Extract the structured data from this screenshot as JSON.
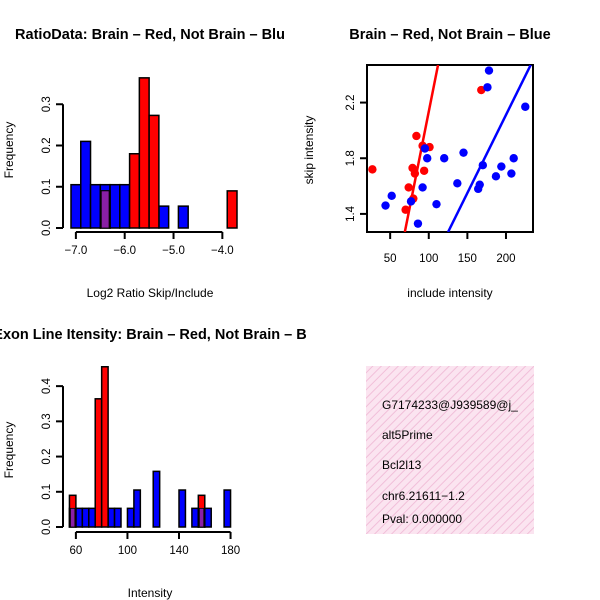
{
  "colors": {
    "red": "#ff0000",
    "blue": "#0000ff",
    "purple_overlap": "#8a1fa6",
    "info_box_bg": "#fbe4f0",
    "info_box_hatch": "#f1bfd9",
    "pval_text": "#cc0000"
  },
  "chart_data": [
    {
      "id": "ratio-hist",
      "type": "bar",
      "title": "RatioData: Brain – Red, Not Brain – Blu",
      "xlabel": "Log2 Ratio Skip/Include",
      "ylabel": "Frequency",
      "xlim": [
        -7.1,
        -3.7
      ],
      "ylim": [
        0,
        0.4
      ],
      "xticks": [
        -7.0,
        -6.0,
        -5.0,
        -4.0
      ],
      "xtick_labels": [
        "−7.0",
        "−6.0",
        "−5.0",
        "−4.0"
      ],
      "yticks": [
        0.0,
        0.1,
        0.2,
        0.3
      ],
      "ytick_labels": [
        "0.0",
        "0.1",
        "0.2",
        "0.3"
      ],
      "bin_width": 0.2,
      "series": [
        {
          "name": "Not Brain",
          "color": "blue",
          "bins": [
            {
              "x0": -7.1,
              "value": 0.105
            },
            {
              "x0": -6.9,
              "value": 0.21
            },
            {
              "x0": -6.7,
              "value": 0.105
            },
            {
              "x0": -6.5,
              "value": 0.105
            },
            {
              "x0": -6.3,
              "value": 0.105
            },
            {
              "x0": -6.1,
              "value": 0.105
            },
            {
              "x0": -5.3,
              "value": 0.053
            },
            {
              "x0": -4.9,
              "value": 0.053
            }
          ]
        },
        {
          "name": "Brain",
          "color": "red",
          "bins": [
            {
              "x0": -6.5,
              "value": 0.09
            },
            {
              "x0": -5.9,
              "value": 0.18
            },
            {
              "x0": -5.7,
              "value": 0.364
            },
            {
              "x0": -5.5,
              "value": 0.273
            },
            {
              "x0": -3.9,
              "value": 0.09
            }
          ]
        }
      ]
    },
    {
      "id": "scatter",
      "type": "scatter",
      "title": "Brain – Red, Not Brain – Blue",
      "xlabel": "include intensity",
      "ylabel": "skip intensity",
      "xlim": [
        20,
        235
      ],
      "ylim": [
        1.27,
        2.47
      ],
      "xticks": [
        50,
        100,
        150,
        200
      ],
      "xtick_labels": [
        "50",
        "100",
        "150",
        "200"
      ],
      "yticks": [
        1.4,
        1.8,
        2.2
      ],
      "ytick_labels": [
        "1.4",
        "1.8",
        "2.2"
      ],
      "series": [
        {
          "name": "Brain",
          "color": "red",
          "points": [
            [
              27,
              1.72
            ],
            [
              70,
              1.43
            ],
            [
              74,
              1.59
            ],
            [
              79,
              1.73
            ],
            [
              80,
              1.51
            ],
            [
              82,
              1.69
            ],
            [
              84,
              1.96
            ],
            [
              92,
              1.89
            ],
            [
              94,
              1.71
            ],
            [
              101,
              1.88
            ],
            [
              168,
              2.29
            ]
          ],
          "fit_line": [
            [
              69,
              1.27
            ],
            [
              112,
              2.47
            ]
          ]
        },
        {
          "name": "Not Brain",
          "color": "blue",
          "points": [
            [
              44,
              1.46
            ],
            [
              52,
              1.53
            ],
            [
              77,
              1.49
            ],
            [
              86,
              1.33
            ],
            [
              92,
              1.59
            ],
            [
              95,
              1.87
            ],
            [
              98,
              1.8
            ],
            [
              110,
              1.47
            ],
            [
              120,
              1.8
            ],
            [
              137,
              1.62
            ],
            [
              145,
              1.84
            ],
            [
              164,
              1.58
            ],
            [
              166,
              1.61
            ],
            [
              170,
              1.75
            ],
            [
              176,
              2.31
            ],
            [
              178,
              2.43
            ],
            [
              187,
              1.67
            ],
            [
              194,
              1.74
            ],
            [
              207,
              1.69
            ],
            [
              210,
              1.8
            ],
            [
              225,
              2.17
            ]
          ],
          "fit_line": [
            [
              125,
              1.27
            ],
            [
              232,
              2.47
            ]
          ]
        }
      ]
    },
    {
      "id": "intensity-hist",
      "type": "bar",
      "title": "Exon Line Itensity: Brain – Red, Not Brain – B",
      "xlabel": "Intensity",
      "ylabel": "Frequency",
      "xlim": [
        50,
        185
      ],
      "ylim": [
        0,
        0.46
      ],
      "xticks": [
        60,
        100,
        140,
        180
      ],
      "xtick_labels": [
        "60",
        "100",
        "140",
        "180"
      ],
      "yticks": [
        0.0,
        0.1,
        0.2,
        0.3,
        0.4
      ],
      "ytick_labels": [
        "0.0",
        "0.1",
        "0.2",
        "0.3",
        "0.4"
      ],
      "bin_width": 5,
      "series": [
        {
          "name": "Not Brain",
          "color": "blue",
          "bins": [
            {
              "x0": 55,
              "value": 0.053
            },
            {
              "x0": 60,
              "value": 0.053
            },
            {
              "x0": 65,
              "value": 0.053
            },
            {
              "x0": 70,
              "value": 0.053
            },
            {
              "x0": 85,
              "value": 0.053
            },
            {
              "x0": 90,
              "value": 0.053
            },
            {
              "x0": 100,
              "value": 0.053
            },
            {
              "x0": 105,
              "value": 0.105
            },
            {
              "x0": 120,
              "value": 0.158
            },
            {
              "x0": 140,
              "value": 0.105
            },
            {
              "x0": 150,
              "value": 0.053
            },
            {
              "x0": 155,
              "value": 0.053
            },
            {
              "x0": 160,
              "value": 0.053
            },
            {
              "x0": 175,
              "value": 0.105
            }
          ]
        },
        {
          "name": "Brain",
          "color": "red",
          "bins": [
            {
              "x0": 55,
              "value": 0.09
            },
            {
              "x0": 75,
              "value": 0.364
            },
            {
              "x0": 80,
              "value": 0.455
            },
            {
              "x0": 155,
              "value": 0.09
            }
          ]
        }
      ]
    }
  ],
  "info_box": {
    "lines": [
      {
        "text": "G7174233@J939589@j_",
        "color": "#000000"
      },
      {
        "text": "alt5Prime",
        "color": "#000000"
      },
      {
        "text": "Bcl2l13",
        "color": "#000000"
      },
      {
        "text": "chr6.21611−1.2",
        "color": "#000000"
      },
      {
        "text": "Pval: 0.000000",
        "color": "#cc0000"
      }
    ]
  }
}
